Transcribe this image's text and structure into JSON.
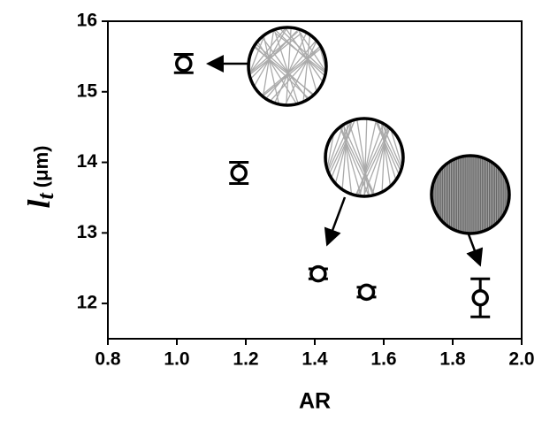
{
  "chart_data": {
    "type": "scatter",
    "xlabel": "AR",
    "ylabel": {
      "symbol": "l",
      "subscript": "t",
      "unit": "(μm)"
    },
    "x": [
      1.02,
      1.18,
      1.41,
      1.55,
      1.88
    ],
    "values": [
      15.4,
      13.85,
      12.42,
      12.16,
      12.08
    ],
    "errors": [
      0.13,
      0.15,
      0.07,
      0.07,
      0.27
    ],
    "color": "#000000",
    "xlim": [
      0.8,
      2.0
    ],
    "ylim": [
      11.5,
      16
    ],
    "xticks": [
      {
        "value": 0.8,
        "label": "0.8"
      },
      {
        "value": 1.0,
        "label": "1.0"
      },
      {
        "value": 1.2,
        "label": "1.2"
      },
      {
        "value": 1.4,
        "label": "1.4"
      },
      {
        "value": 1.6,
        "label": "1.6"
      },
      {
        "value": 1.8,
        "label": "1.8"
      },
      {
        "value": 2.0,
        "label": "2.0"
      }
    ],
    "yticks": [
      12,
      13,
      14,
      15,
      16
    ]
  }
}
